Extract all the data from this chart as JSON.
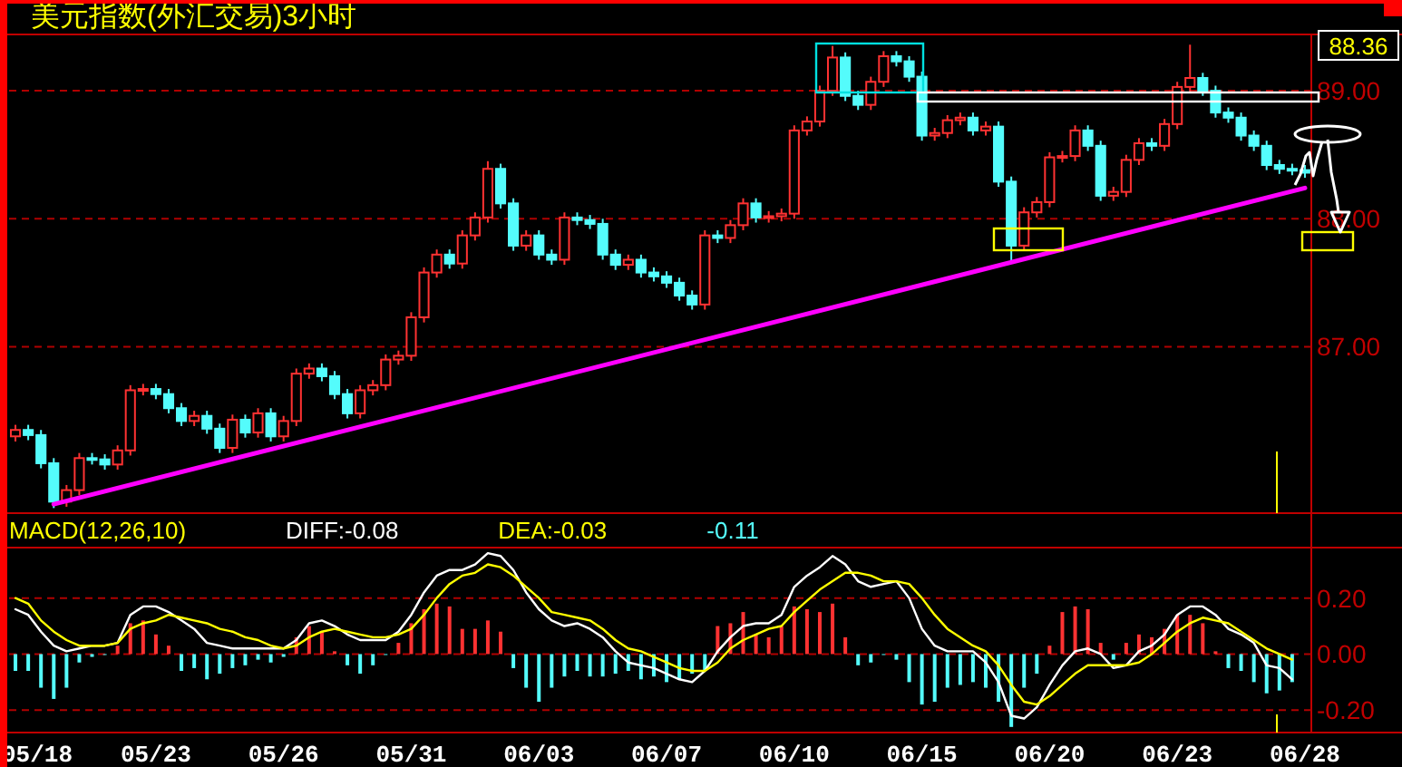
{
  "chart_data": [
    {
      "type": "candlestick",
      "title": "美元指数(外汇交易)3小时",
      "categories": [
        null,
        null,
        null,
        null,
        null,
        null,
        null,
        null,
        null,
        null,
        null,
        null,
        null,
        null,
        null,
        null,
        null,
        null,
        null,
        null,
        null,
        null,
        null,
        null,
        null,
        null,
        null,
        null,
        null,
        null,
        null,
        null,
        null,
        null,
        null,
        null,
        null,
        null,
        null,
        null,
        null,
        null,
        null,
        null,
        null,
        null,
        null,
        null,
        null,
        null,
        null,
        null,
        null,
        null,
        null,
        null,
        null,
        null,
        null,
        null,
        null,
        null,
        null,
        null,
        null,
        null,
        null,
        null,
        null,
        null,
        null,
        null,
        null,
        null,
        null,
        null,
        null,
        null,
        null,
        null,
        null,
        null,
        null,
        null,
        null,
        null,
        null,
        null,
        null,
        null,
        null,
        null,
        null,
        null,
        null,
        null,
        null,
        null,
        null,
        null,
        null,
        null
      ],
      "ohlc": [
        [
          86.3,
          86.39,
          86.26,
          86.35
        ],
        [
          86.35,
          86.39,
          86.27,
          86.31
        ],
        [
          86.31,
          86.35,
          86.05,
          86.09
        ],
        [
          86.09,
          86.13,
          85.74,
          85.79
        ],
        [
          85.79,
          85.92,
          85.75,
          85.88
        ],
        [
          85.88,
          86.17,
          85.84,
          86.13
        ],
        [
          86.13,
          86.17,
          86.08,
          86.12
        ],
        [
          86.12,
          86.16,
          86.04,
          86.08
        ],
        [
          86.08,
          86.23,
          86.04,
          86.19
        ],
        [
          86.19,
          86.7,
          86.15,
          86.66
        ],
        [
          86.66,
          86.71,
          86.62,
          86.67
        ],
        [
          86.67,
          86.71,
          86.59,
          86.63
        ],
        [
          86.63,
          86.67,
          86.48,
          86.52
        ],
        [
          86.52,
          86.56,
          86.38,
          86.42
        ],
        [
          86.42,
          86.5,
          86.38,
          86.46
        ],
        [
          86.46,
          86.5,
          86.32,
          86.36
        ],
        [
          86.36,
          86.4,
          86.17,
          86.21
        ],
        [
          86.21,
          86.47,
          86.17,
          86.43
        ],
        [
          86.43,
          86.47,
          86.29,
          86.33
        ],
        [
          86.33,
          86.52,
          86.29,
          86.48
        ],
        [
          86.48,
          86.52,
          86.26,
          86.3
        ],
        [
          86.3,
          86.46,
          86.26,
          86.42
        ],
        [
          86.42,
          86.83,
          86.38,
          86.79
        ],
        [
          86.79,
          86.87,
          86.75,
          86.83
        ],
        [
          86.83,
          86.87,
          86.73,
          86.77
        ],
        [
          86.77,
          86.81,
          86.59,
          86.63
        ],
        [
          86.63,
          86.67,
          86.44,
          86.48
        ],
        [
          86.48,
          86.7,
          86.44,
          86.66
        ],
        [
          86.66,
          86.74,
          86.62,
          86.7
        ],
        [
          86.7,
          86.94,
          86.66,
          86.9
        ],
        [
          86.9,
          86.97,
          86.86,
          86.93
        ],
        [
          86.93,
          87.27,
          86.89,
          87.23
        ],
        [
          87.23,
          87.62,
          87.19,
          87.58
        ],
        [
          87.58,
          87.76,
          87.54,
          87.72
        ],
        [
          87.72,
          87.76,
          87.61,
          87.65
        ],
        [
          87.65,
          87.91,
          87.61,
          87.87
        ],
        [
          87.87,
          88.05,
          87.83,
          88.01
        ],
        [
          88.01,
          88.45,
          87.97,
          88.39
        ],
        [
          88.39,
          88.43,
          88.08,
          88.12
        ],
        [
          88.12,
          88.16,
          87.75,
          87.79
        ],
        [
          87.79,
          87.91,
          87.75,
          87.87
        ],
        [
          87.87,
          87.91,
          87.68,
          87.72
        ],
        [
          87.72,
          87.76,
          87.64,
          87.68
        ],
        [
          87.68,
          88.05,
          87.64,
          88.01
        ],
        [
          88.01,
          88.05,
          87.95,
          87.99
        ],
        [
          87.99,
          88.03,
          87.92,
          87.96
        ],
        [
          87.96,
          88.0,
          87.68,
          87.72
        ],
        [
          87.72,
          87.76,
          87.6,
          87.64
        ],
        [
          87.64,
          87.72,
          87.6,
          87.68
        ],
        [
          87.68,
          87.72,
          87.54,
          87.58
        ],
        [
          87.58,
          87.62,
          87.51,
          87.55
        ],
        [
          87.55,
          87.59,
          87.46,
          87.5
        ],
        [
          87.5,
          87.54,
          87.36,
          87.4
        ],
        [
          87.4,
          87.44,
          87.29,
          87.33
        ],
        [
          87.33,
          87.91,
          87.29,
          87.87
        ],
        [
          87.87,
          87.91,
          87.81,
          87.85
        ],
        [
          87.85,
          87.99,
          87.81,
          87.95
        ],
        [
          87.95,
          88.16,
          87.91,
          88.12
        ],
        [
          88.12,
          88.16,
          87.97,
          88.01
        ],
        [
          88.01,
          88.06,
          87.97,
          88.02
        ],
        [
          88.02,
          88.08,
          87.98,
          88.04
        ],
        [
          88.04,
          88.73,
          88.0,
          88.69
        ],
        [
          88.69,
          88.8,
          88.65,
          88.76
        ],
        [
          88.76,
          89.04,
          88.72,
          89.0
        ],
        [
          89.0,
          89.35,
          88.96,
          89.26
        ],
        [
          89.26,
          89.3,
          88.92,
          88.96
        ],
        [
          88.96,
          89.0,
          88.85,
          88.89
        ],
        [
          88.89,
          89.11,
          88.85,
          89.07
        ],
        [
          89.07,
          89.31,
          89.03,
          89.27
        ],
        [
          89.27,
          89.31,
          89.19,
          89.23
        ],
        [
          89.23,
          89.27,
          89.07,
          89.11
        ],
        [
          89.11,
          89.15,
          88.61,
          88.65
        ],
        [
          88.65,
          88.71,
          88.61,
          88.67
        ],
        [
          88.67,
          88.81,
          88.63,
          88.77
        ],
        [
          88.77,
          88.83,
          88.73,
          88.79
        ],
        [
          88.79,
          88.83,
          88.65,
          88.69
        ],
        [
          88.69,
          88.76,
          88.65,
          88.72
        ],
        [
          88.72,
          88.76,
          88.25,
          88.29
        ],
        [
          88.29,
          88.33,
          87.66,
          87.79
        ],
        [
          87.79,
          88.09,
          87.75,
          88.05
        ],
        [
          88.05,
          88.17,
          88.01,
          88.13
        ],
        [
          88.13,
          88.52,
          88.09,
          88.48
        ],
        [
          88.48,
          88.53,
          88.44,
          88.49
        ],
        [
          88.49,
          88.73,
          88.45,
          88.69
        ],
        [
          88.69,
          88.73,
          88.53,
          88.57
        ],
        [
          88.57,
          88.61,
          88.14,
          88.18
        ],
        [
          88.18,
          88.25,
          88.14,
          88.21
        ],
        [
          88.21,
          88.5,
          88.17,
          88.46
        ],
        [
          88.46,
          88.63,
          88.42,
          88.59
        ],
        [
          88.59,
          88.63,
          88.53,
          88.57
        ],
        [
          88.57,
          88.78,
          88.53,
          88.74
        ],
        [
          88.74,
          89.07,
          88.7,
          89.03
        ],
        [
          89.03,
          89.36,
          88.99,
          89.1
        ],
        [
          89.1,
          89.14,
          88.96,
          89.0
        ],
        [
          89.0,
          89.04,
          88.79,
          88.83
        ],
        [
          88.83,
          88.87,
          88.75,
          88.79
        ],
        [
          88.79,
          88.83,
          88.61,
          88.65
        ],
        [
          88.65,
          88.69,
          88.53,
          88.57
        ],
        [
          88.57,
          88.61,
          88.38,
          88.42
        ],
        [
          88.42,
          88.46,
          88.35,
          88.39
        ],
        [
          88.39,
          88.43,
          88.34,
          88.38
        ],
        [
          88.38,
          88.42,
          88.32,
          88.36
        ]
      ],
      "colors": [
        "#ff3232",
        "#54fcfc",
        "#54fcfc",
        "#54fcfc",
        "#ff3232",
        "#ff3232",
        "#54fcfc",
        "#54fcfc",
        "#ff3232",
        "#ff3232",
        "#ff3232",
        "#54fcfc",
        "#54fcfc",
        "#54fcfc",
        "#ff3232",
        "#54fcfc",
        "#54fcfc",
        "#ff3232",
        "#54fcfc",
        "#ff3232",
        "#54fcfc",
        "#ff3232",
        "#ff3232",
        "#ff3232",
        "#54fcfc",
        "#54fcfc",
        "#54fcfc",
        "#ff3232",
        "#ff3232",
        "#ff3232",
        "#ff3232",
        "#ff3232",
        "#ff3232",
        "#ff3232",
        "#54fcfc",
        "#ff3232",
        "#ff3232",
        "#ff3232",
        "#54fcfc",
        "#54fcfc",
        "#ff3232",
        "#54fcfc",
        "#54fcfc",
        "#ff3232",
        "#54fcfc",
        "#54fcfc",
        "#54fcfc",
        "#54fcfc",
        "#ff3232",
        "#54fcfc",
        "#54fcfc",
        "#54fcfc",
        "#54fcfc",
        "#54fcfc",
        "#ff3232",
        "#54fcfc",
        "#ff3232",
        "#ff3232",
        "#54fcfc",
        "#ff3232",
        "#ff3232",
        "#ff3232",
        "#ff3232",
        "#ff3232",
        "#ff3232",
        "#54fcfc",
        "#54fcfc",
        "#ff3232",
        "#ff3232",
        "#54fcfc",
        "#54fcfc",
        "#54fcfc",
        "#ff3232",
        "#ff3232",
        "#ff3232",
        "#54fcfc",
        "#ff3232",
        "#54fcfc",
        "#54fcfc",
        "#ff3232",
        "#ff3232",
        "#ff3232",
        "#ff3232",
        "#ff3232",
        "#54fcfc",
        "#54fcfc",
        "#ff3232",
        "#ff3232",
        "#ff3232",
        "#54fcfc",
        "#ff3232",
        "#ff3232",
        "#ff3232",
        "#54fcfc",
        "#54fcfc",
        "#54fcfc",
        "#54fcfc",
        "#54fcfc",
        "#54fcfc",
        "#54fcfc",
        "#54fcfc",
        "#54fcfc"
      ],
      "series": [
        {
          "type": "line",
          "color": "#ff00ff",
          "values": [
            null,
            null,
            null,
            85.77,
            null,
            null,
            null,
            null,
            null,
            null,
            null,
            null,
            null,
            null,
            null,
            null,
            null,
            null,
            null,
            null,
            null,
            null,
            null,
            null,
            null,
            null,
            null,
            null,
            null,
            null,
            null,
            null,
            null,
            null,
            null,
            null,
            null,
            null,
            null,
            null,
            null,
            null,
            null,
            null,
            null,
            null,
            null,
            null,
            null,
            null,
            null,
            null,
            null,
            null,
            null,
            null,
            null,
            null,
            null,
            null,
            null,
            null,
            null,
            null,
            null,
            null,
            null,
            null,
            null,
            null,
            null,
            null,
            null,
            null,
            null,
            null,
            null,
            null,
            null,
            null,
            null,
            null,
            null,
            null,
            null,
            null,
            null,
            null,
            null,
            null,
            null,
            null,
            null,
            null,
            null,
            null,
            null,
            null,
            null,
            null,
            null,
            88.24
          ]
        }
      ],
      "ylim": [
        85.7,
        89.44
      ],
      "yticks": [
        {
          "value": 87,
          "label": "87.00"
        },
        {
          "value": 88,
          "label": "88.00"
        },
        {
          "value": 89,
          "label": "89.00"
        }
      ],
      "grid": "y",
      "tick_labels": "y",
      "annotations": [
        "88.36"
      ]
    },
    {
      "type": "bar",
      "title": "MACD(12,26,10)",
      "legend": "top left",
      "categories": [
        null,
        "05/18",
        null,
        null,
        null,
        null,
        null,
        null,
        null,
        null,
        null,
        "05/23",
        null,
        null,
        null,
        null,
        null,
        null,
        null,
        null,
        null,
        "05/26",
        null,
        null,
        null,
        null,
        null,
        null,
        null,
        null,
        null,
        "05/31",
        null,
        null,
        null,
        null,
        null,
        null,
        null,
        null,
        null,
        "06/03",
        null,
        null,
        null,
        null,
        null,
        null,
        null,
        null,
        null,
        "06/07",
        null,
        null,
        null,
        null,
        null,
        null,
        null,
        null,
        null,
        "06/10",
        null,
        null,
        null,
        null,
        null,
        null,
        null,
        null,
        null,
        "06/15",
        null,
        null,
        null,
        null,
        null,
        null,
        null,
        null,
        null,
        "06/20",
        null,
        null,
        null,
        null,
        null,
        null,
        null,
        null,
        null,
        "06/23",
        null,
        null,
        null,
        null,
        null,
        null,
        null,
        null,
        null,
        "06/28"
      ],
      "series": [
        {
          "name": "DIFF:-0.08",
          "type": "line",
          "color": "#ffffff",
          "values": [
            0.16,
            0.14,
            0.08,
            0.03,
            0.01,
            0.02,
            0.03,
            0.03,
            0.04,
            0.14,
            0.17,
            0.17,
            0.15,
            0.12,
            0.09,
            0.04,
            0.03,
            0.02,
            0.02,
            0.02,
            0.02,
            0.02,
            0.05,
            0.11,
            0.12,
            0.1,
            0.07,
            0.05,
            0.05,
            0.05,
            0.08,
            0.14,
            0.22,
            0.28,
            0.3,
            0.3,
            0.32,
            0.36,
            0.35,
            0.3,
            0.22,
            0.16,
            0.12,
            0.1,
            0.11,
            0.09,
            0.06,
            0.01,
            -0.03,
            -0.04,
            -0.05,
            -0.07,
            -0.09,
            -0.1,
            -0.06,
            0.01,
            0.06,
            0.1,
            0.11,
            0.11,
            0.14,
            0.24,
            0.28,
            0.31,
            0.35,
            0.32,
            0.26,
            0.24,
            0.25,
            0.26,
            0.2,
            0.09,
            0.03,
            0.01,
            0.01,
            0.01,
            -0.03,
            -0.1,
            -0.22,
            -0.23,
            -0.19,
            -0.11,
            -0.04,
            0.01,
            0.02,
            0,
            -0.05,
            -0.04,
            0.01,
            0.03,
            0.07,
            0.14,
            0.17,
            0.17,
            0.14,
            0.09,
            0.07,
            0.04,
            -0.04,
            -0.05,
            -0.09,
            null
          ]
        },
        {
          "name": "DEA:-0.03",
          "type": "line",
          "color": "#ffff00",
          "values": [
            0.2,
            0.18,
            0.12,
            0.08,
            0.05,
            0.03,
            0.03,
            0.03,
            0.04,
            0.09,
            0.11,
            0.12,
            0.14,
            0.13,
            0.12,
            0.11,
            0.09,
            0.08,
            0.06,
            0.05,
            0.03,
            0.02,
            0.03,
            0.06,
            0.08,
            0.09,
            0.08,
            0.07,
            0.06,
            0.06,
            0.07,
            0.09,
            0.14,
            0.2,
            0.25,
            0.28,
            0.29,
            0.32,
            0.31,
            0.28,
            0.24,
            0.2,
            0.15,
            0.14,
            0.13,
            0.12,
            0.09,
            0.05,
            0.02,
            0.01,
            -0.01,
            -0.03,
            -0.05,
            -0.06,
            -0.06,
            -0.03,
            0.02,
            0.05,
            0.07,
            0.09,
            0.1,
            0.15,
            0.19,
            0.23,
            0.26,
            0.29,
            0.29,
            0.28,
            0.26,
            0.26,
            0.25,
            0.2,
            0.14,
            0.09,
            0.06,
            0.03,
            0.01,
            -0.04,
            -0.11,
            -0.17,
            -0.18,
            -0.15,
            -0.11,
            -0.07,
            -0.04,
            -0.04,
            -0.04,
            -0.04,
            -0.03,
            0,
            0.04,
            0.08,
            0.11,
            0.13,
            0.12,
            0.11,
            0.08,
            0.05,
            0.02,
            0,
            -0.02,
            null
          ]
        },
        {
          "name": "-0.11",
          "type": "bar",
          "color": "#54fcfc",
          "values": [
            -0.06,
            -0.06,
            -0.12,
            -0.16,
            -0.12,
            -0.03,
            -0.01,
            0,
            0.03,
            0.11,
            0.12,
            0.07,
            0.03,
            -0.06,
            -0.05,
            -0.09,
            -0.07,
            -0.05,
            -0.04,
            -0.02,
            -0.03,
            -0.01,
            0.06,
            0.1,
            0.08,
            0.01,
            -0.04,
            -0.07,
            -0.04,
            0,
            0.04,
            0.11,
            0.16,
            0.18,
            0.17,
            0.09,
            0.09,
            0.12,
            0.08,
            -0.05,
            -0.12,
            -0.17,
            -0.12,
            -0.08,
            -0.06,
            -0.08,
            -0.08,
            -0.07,
            -0.06,
            -0.09,
            -0.08,
            -0.1,
            -0.09,
            -0.07,
            -0.06,
            0.1,
            0.11,
            0.15,
            0.07,
            0.06,
            0.1,
            0.17,
            0.16,
            0.15,
            0.18,
            0.06,
            -0.04,
            -0.03,
            0,
            -0.02,
            -0.1,
            -0.18,
            -0.17,
            -0.12,
            -0.11,
            -0.1,
            -0.12,
            -0.17,
            -0.26,
            -0.12,
            -0.07,
            0.03,
            0.15,
            0.17,
            0.16,
            0.04,
            -0.02,
            0.04,
            0.07,
            0.06,
            0.09,
            0.14,
            0.14,
            0.11,
            0.01,
            -0.05,
            -0.06,
            -0.1,
            -0.14,
            -0.13,
            -0.1,
            null
          ],
          "colors": [
            "#54fcfc",
            "#54fcfc",
            "#54fcfc",
            "#54fcfc",
            "#54fcfc",
            "#54fcfc",
            "#54fcfc",
            "#54fcfc",
            "#ff3232",
            "#ff3232",
            "#ff3232",
            "#ff3232",
            "#ff3232",
            "#54fcfc",
            "#54fcfc",
            "#54fcfc",
            "#54fcfc",
            "#54fcfc",
            "#54fcfc",
            "#54fcfc",
            "#54fcfc",
            "#54fcfc",
            "#ff3232",
            "#ff3232",
            "#ff3232",
            "#ff3232",
            "#54fcfc",
            "#54fcfc",
            "#54fcfc",
            "#54fcfc",
            "#ff3232",
            "#ff3232",
            "#ff3232",
            "#ff3232",
            "#ff3232",
            "#ff3232",
            "#ff3232",
            "#ff3232",
            "#ff3232",
            "#54fcfc",
            "#54fcfc",
            "#54fcfc",
            "#54fcfc",
            "#54fcfc",
            "#54fcfc",
            "#54fcfc",
            "#54fcfc",
            "#54fcfc",
            "#54fcfc",
            "#54fcfc",
            "#54fcfc",
            "#54fcfc",
            "#54fcfc",
            "#54fcfc",
            "#54fcfc",
            "#ff3232",
            "#ff3232",
            "#ff3232",
            "#ff3232",
            "#ff3232",
            "#ff3232",
            "#ff3232",
            "#ff3232",
            "#ff3232",
            "#ff3232",
            "#ff3232",
            "#54fcfc",
            "#54fcfc",
            "#54fcfc",
            "#54fcfc",
            "#54fcfc",
            "#54fcfc",
            "#54fcfc",
            "#54fcfc",
            "#54fcfc",
            "#54fcfc",
            "#54fcfc",
            "#54fcfc",
            "#54fcfc",
            "#54fcfc",
            "#54fcfc",
            "#ff3232",
            "#ff3232",
            "#ff3232",
            "#ff3232",
            "#ff3232",
            "#54fcfc",
            "#ff3232",
            "#ff3232",
            "#ff3232",
            "#ff3232",
            "#ff3232",
            "#ff3232",
            "#ff3232",
            "#ff3232",
            "#54fcfc",
            "#54fcfc",
            "#54fcfc",
            "#54fcfc",
            "#54fcfc",
            "#54fcfc",
            "#54fcfc"
          ]
        }
      ],
      "ylim": [
        -0.28,
        0.38
      ],
      "yticks": [
        {
          "value": -0.2,
          "label": "-0.20"
        },
        {
          "value": 0,
          "label": "0.00"
        },
        {
          "value": 0.2,
          "label": "0.20"
        }
      ],
      "grid": "y"
    }
  ]
}
